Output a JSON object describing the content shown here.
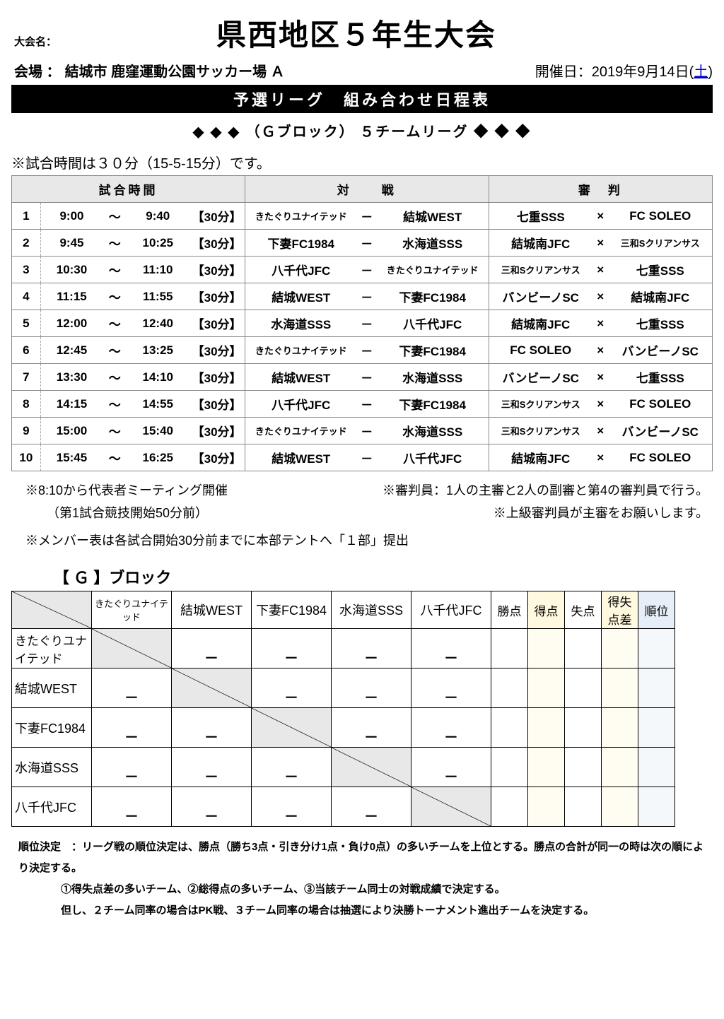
{
  "header": {
    "event_label": "大会名：",
    "event_title": "県西地区５年生大会",
    "venue_label": "会場 ：",
    "venue_value": "結城市 鹿窪運動公園サッカー場 Ａ",
    "date_label": "開催日：",
    "date_value": "2019年9月14日(",
    "date_day": "土",
    "date_close": ")"
  },
  "bar_title": "予選リーグ　組み合わせ日程表",
  "block_line": "◆ ◆ ◆ （Ｇブロック） ５チームリーグ ◆ ◆ ◆",
  "time_note": "※試合時間は３０分（15-5-15分）です。",
  "schedule": {
    "headers": {
      "time": "試合時間",
      "match": "対　　戦",
      "ref": "審　判"
    },
    "duration_tag": "【30分】",
    "tilde": "～",
    "dash": "－",
    "x": "×",
    "rows": [
      {
        "n": "1",
        "t1": "9:00",
        "t2": "9:40",
        "a": "きたぐりユナイテッド",
        "a_sm": true,
        "b": "結城WEST",
        "r1": "七重SSS",
        "r2": "FC SOLEO"
      },
      {
        "n": "2",
        "t1": "9:45",
        "t2": "10:25",
        "a": "下妻FC1984",
        "b": "水海道SSS",
        "r1": "結城南JFC",
        "r2": "三和Sクリアンサス",
        "r2_sm": true
      },
      {
        "n": "3",
        "t1": "10:30",
        "t2": "11:10",
        "a": "八千代JFC",
        "b": "きたぐりユナイテッド",
        "b_sm": true,
        "r1": "三和Sクリアンサス",
        "r1_sm": true,
        "r2": "七重SSS"
      },
      {
        "n": "4",
        "t1": "11:15",
        "t2": "11:55",
        "a": "結城WEST",
        "b": "下妻FC1984",
        "r1": "バンビーノSC",
        "r2": "結城南JFC"
      },
      {
        "n": "5",
        "t1": "12:00",
        "t2": "12:40",
        "a": "水海道SSS",
        "b": "八千代JFC",
        "r1": "結城南JFC",
        "r2": "七重SSS"
      },
      {
        "n": "6",
        "t1": "12:45",
        "t2": "13:25",
        "a": "きたぐりユナイテッド",
        "a_sm": true,
        "b": "下妻FC1984",
        "r1": "FC SOLEO",
        "r2": "バンビーノSC"
      },
      {
        "n": "7",
        "t1": "13:30",
        "t2": "14:10",
        "a": "結城WEST",
        "b": "水海道SSS",
        "r1": "バンビーノSC",
        "r2": "七重SSS"
      },
      {
        "n": "8",
        "t1": "14:15",
        "t2": "14:55",
        "a": "八千代JFC",
        "b": "下妻FC1984",
        "r1": "三和Sクリアンサス",
        "r1_sm": true,
        "r2": "FC SOLEO"
      },
      {
        "n": "9",
        "t1": "15:00",
        "t2": "15:40",
        "a": "きたぐりユナイテッド",
        "a_sm": true,
        "b": "水海道SSS",
        "r1": "三和Sクリアンサス",
        "r1_sm": true,
        "r2": "バンビーノSC"
      },
      {
        "n": "10",
        "t1": "15:45",
        "t2": "16:25",
        "a": "結城WEST",
        "b": "八千代JFC",
        "r1": "結城南JFC",
        "r2": "FC SOLEO"
      }
    ]
  },
  "notes": {
    "n1": "※8:10から代表者ミーティング開催",
    "n1b": "（第1試合競技開始50分前）",
    "n2": "※審判員：1人の主審と2人の副審と第4の審判員で行う。",
    "n3": "※上級審判員が主審をお願いします。",
    "n4": "※メンバー表は各試合開始30分前までに本部テントへ「１部」提出"
  },
  "standing": {
    "heading": "【 Ｇ 】ブロック",
    "teams": [
      "きたぐりユナイテッド",
      "結城WEST",
      "下妻FC1984",
      "水海道SSS",
      "八千代JFC"
    ],
    "teams_big": [
      false,
      true,
      true,
      true,
      true
    ],
    "stat_cols": [
      "勝点",
      "得点",
      "失点",
      "得失\n点差",
      "順位"
    ],
    "dash": "－"
  },
  "rules": {
    "line1": "順位決定　：リーグ戦の順位決定は、勝点（勝ち3点・引き分け1点・負け0点）の多いチームを上位とする。勝点の合計が同一の時は次の順により決定する。",
    "line2": "①得失点差の多いチーム、②総得点の多いチーム、③当該チーム同士の対戦成績で決定する。",
    "line3": "但し、２チーム同率の場合はPK戦、３チーム同率の場合は抽選により決勝トーナメント進出チームを決定する。"
  },
  "colors": {
    "header_bg": "#e8e8e8",
    "pale_yellow": "#fff9e0",
    "pale_blue": "#e6eef7"
  }
}
